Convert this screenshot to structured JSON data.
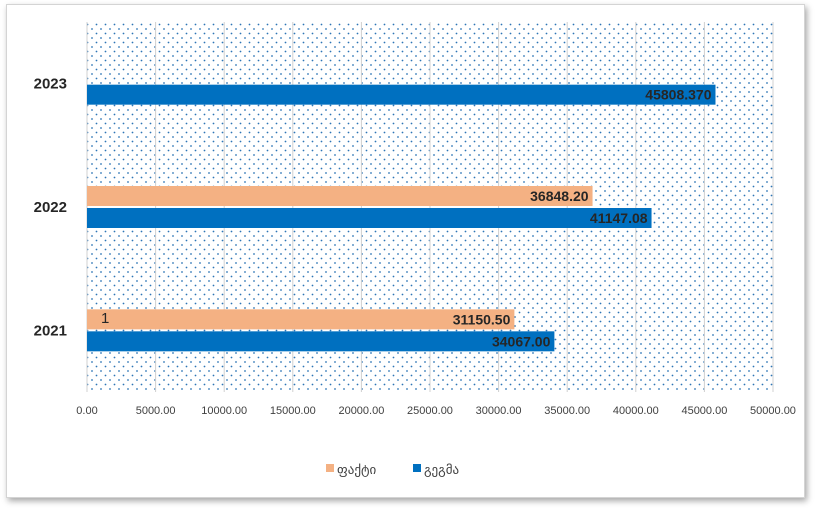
{
  "chart_data": {
    "type": "bar",
    "orientation": "horizontal",
    "categories": [
      "2021",
      "2022",
      "2023"
    ],
    "series": [
      {
        "name": "ფაქტი",
        "values": [
          31150.5,
          36848.2,
          null
        ],
        "labels": [
          "31150.50",
          "36848.20",
          ""
        ],
        "color": "#F4B183"
      },
      {
        "name": "გეგმა",
        "values": [
          34067.0,
          41147.08,
          45808.37
        ],
        "labels": [
          "34067.00",
          "41147.08",
          "45808.370"
        ],
        "color": "#0070C0"
      }
    ],
    "xlim": [
      0,
      50000
    ],
    "x_ticks": [
      0,
      5000,
      10000,
      15000,
      20000,
      25000,
      30000,
      35000,
      40000,
      45000,
      50000
    ],
    "x_tick_labels": [
      "0.00",
      "5000.00",
      "10000.00",
      "15000.00",
      "20000.00",
      "25000.00",
      "30000.00",
      "35000.00",
      "40000.00",
      "45000.00",
      "50000.00"
    ],
    "grid": true,
    "plot_background": "dotted-blue",
    "legend_position": "bottom",
    "annotation": "1"
  }
}
